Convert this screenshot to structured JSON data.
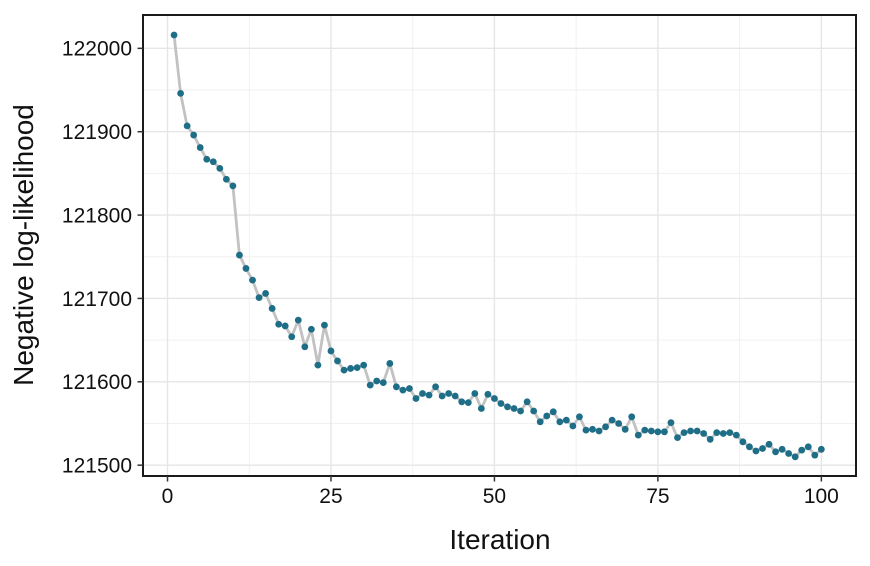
{
  "chart_data": {
    "type": "line",
    "title": "",
    "xlabel": "Iteration",
    "ylabel": "Negative log-likelihood",
    "legend_position": "none",
    "grid": "major and minor gridlines on white panel, black panel border",
    "xlim": [
      -3.75,
      105.3
    ],
    "ylim": [
      121487,
      122040
    ],
    "x_major_ticks": [
      0,
      25,
      50,
      75,
      100
    ],
    "x_minor_ticks": [
      12.5,
      37.5,
      62.5,
      87.5
    ],
    "y_major_ticks": [
      121500,
      121600,
      121700,
      121800,
      121900,
      122000
    ],
    "y_minor_ticks": [
      121550,
      121650,
      121750,
      121850,
      121950
    ],
    "series": [
      {
        "name": "negative-log-likelihood-trace",
        "marker": "point",
        "x": [
          1,
          2,
          3,
          4,
          5,
          6,
          7,
          8,
          9,
          10,
          11,
          12,
          13,
          14,
          15,
          16,
          17,
          18,
          19,
          20,
          21,
          22,
          23,
          24,
          25,
          26,
          27,
          28,
          29,
          30,
          31,
          32,
          33,
          34,
          35,
          36,
          37,
          38,
          39,
          40,
          41,
          42,
          43,
          44,
          45,
          46,
          47,
          48,
          49,
          50,
          51,
          52,
          53,
          54,
          55,
          56,
          57,
          58,
          59,
          60,
          61,
          62,
          63,
          64,
          65,
          66,
          67,
          68,
          69,
          70,
          71,
          72,
          73,
          74,
          75,
          76,
          77,
          78,
          79,
          80,
          81,
          82,
          83,
          84,
          85,
          86,
          87,
          88,
          89,
          90,
          91,
          92,
          93,
          94,
          95,
          96,
          97,
          98,
          99,
          100
        ],
        "y": [
          122016,
          121946,
          121907,
          121896,
          121881,
          121867,
          121864,
          121856,
          121843,
          121835,
          121752,
          121736,
          121722,
          121701,
          121706,
          121688,
          121669,
          121667,
          121654,
          121674,
          121642,
          121663,
          121620,
          121668,
          121637,
          121625,
          121614,
          121616,
          121617,
          121620,
          121596,
          121601,
          121599,
          121622,
          121594,
          121590,
          121592,
          121580,
          121586,
          121584,
          121594,
          121583,
          121586,
          121583,
          121576,
          121575,
          121586,
          121568,
          121585,
          121580,
          121574,
          121570,
          121568,
          121565,
          121576,
          121565,
          121552,
          121559,
          121564,
          121552,
          121554,
          121547,
          121558,
          121542,
          121543,
          121541,
          121546,
          121554,
          121550,
          121543,
          121558,
          121536,
          121542,
          121541,
          121540,
          121540,
          121551,
          121533,
          121539,
          121541,
          121541,
          121538,
          121531,
          121539,
          121538,
          121539,
          121536,
          121528,
          121522,
          121517,
          121520,
          121525,
          121516,
          121519,
          121514,
          121510,
          121518,
          121522,
          121512,
          121519
        ]
      }
    ],
    "style": {
      "point_color": "#1f6e87",
      "line_color": "#c2c2c2",
      "grid_major_color": "#e6e6e6",
      "grid_minor_color": "#f1f1f1",
      "panel_border_color": "#1a1a1a",
      "tick_color": "#333333",
      "text_color": "#111111",
      "background": "#ffffff"
    }
  }
}
